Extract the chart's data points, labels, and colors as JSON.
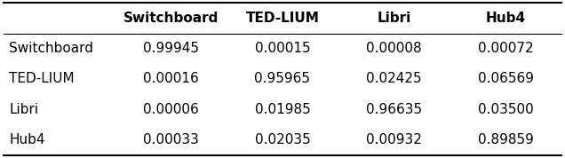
{
  "col_headers": [
    "",
    "Switchboard",
    "TED-LIUM",
    "Libri",
    "Hub4"
  ],
  "row_labels": [
    "Switchboard",
    "TED-LIUM",
    "Libri",
    "Hub4"
  ],
  "table_data": [
    [
      "0.99945",
      "0.00015",
      "0.00008",
      "0.00072"
    ],
    [
      "0.00016",
      "0.95965",
      "0.02425",
      "0.06569"
    ],
    [
      "0.00006",
      "0.01985",
      "0.96635",
      "0.03500"
    ],
    [
      "0.00033",
      "0.02035",
      "0.00932",
      "0.89859"
    ]
  ],
  "header_fontsize": 11,
  "cell_fontsize": 11,
  "background_color": "#ffffff",
  "text_color": "#000000",
  "figsize": [
    6.36,
    1.78
  ],
  "dpi": 100
}
